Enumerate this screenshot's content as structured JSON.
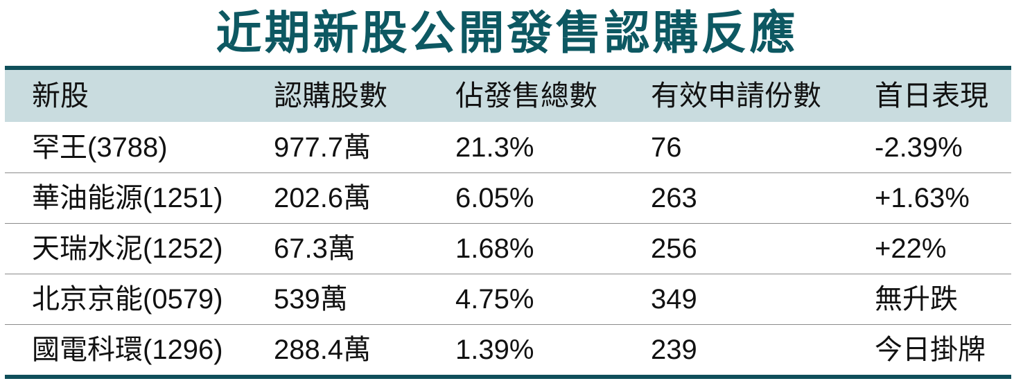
{
  "title": "近期新股公開發售認購反應",
  "colors": {
    "title": "#0d5862",
    "header_bg": "#c9dcdf",
    "rule": "#0f4f5a"
  },
  "columns": [
    "新股",
    "認購股數",
    "佔發售總數",
    "有效申請份數",
    "首日表現"
  ],
  "rows": [
    [
      "罕王(3788)",
      "977.7萬",
      "21.3%",
      "76",
      "-2.39%"
    ],
    [
      "華油能源(1251)",
      "202.6萬",
      "6.05%",
      "263",
      "+1.63%"
    ],
    [
      "天瑞水泥(1252)",
      "67.3萬",
      "1.68%",
      "256",
      "+22%"
    ],
    [
      "北京京能(0579)",
      "539萬",
      "4.75%",
      "349",
      "無升跌"
    ],
    [
      "國電科環(1296)",
      "288.4萬",
      "1.39%",
      "239",
      "今日掛牌"
    ]
  ]
}
